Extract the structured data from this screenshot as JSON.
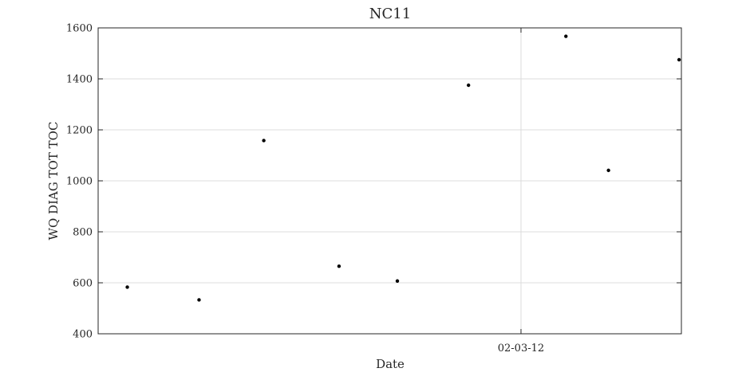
{
  "chart_data": {
    "type": "scatter",
    "title": "NC11",
    "xlabel": "Date",
    "ylabel": "WQ DIAG TOT TOC",
    "x_tick_labels": [
      "02-03-12"
    ],
    "ylim": [
      400,
      1600
    ],
    "y_ticks": [
      400,
      600,
      800,
      1000,
      1200,
      1400,
      1600
    ],
    "grid": true,
    "marker_color": "#000000",
    "series": [
      {
        "x": [
          "≈01-20-12",
          "≈01-23-12",
          "≈01-25-12",
          "≈01-28-12",
          "≈01-30-12",
          "≈02-01-12",
          "≈02-04-12",
          "≈02-05-12",
          "≈02-08-12"
        ],
        "values": [
          583,
          533,
          1158,
          665,
          607,
          1375,
          1567,
          1041,
          1475
        ]
      }
    ]
  }
}
